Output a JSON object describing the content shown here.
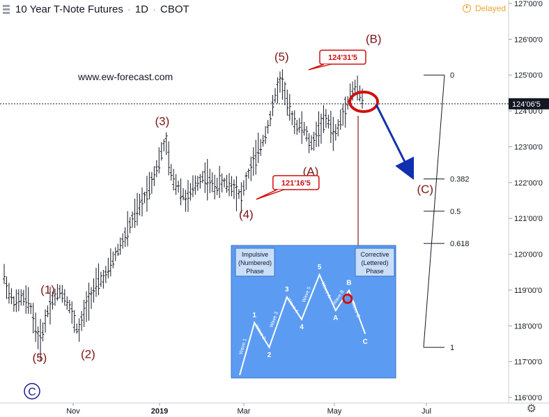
{
  "header": {
    "symbol": "10 Year T-Note Futures",
    "interval": "1D",
    "exchange": "CBOT",
    "status": "Delayed"
  },
  "watermark": "www.ew-forecast.com",
  "colors": {
    "wave_label": "#7b1414",
    "callout_border": "#d01010",
    "forecast_arrow": "#1030b0",
    "inset_bg": "#5b9cf2",
    "price_marker": "#131722"
  },
  "chart_data": {
    "type": "candlestick",
    "title": "",
    "xlabel": "",
    "ylabel": "",
    "x_tick_labels": [
      "Nov",
      "2019",
      "Mar",
      "May",
      "Jul"
    ],
    "y_ticks": [
      "116'00'0",
      "117'00'0",
      "118'00'0",
      "119'00'0",
      "120'00'0",
      "121'00'0",
      "122'00'0",
      "123'00'0",
      "124'00'0",
      "125'00'0",
      "126'00'0",
      "127'00'0"
    ],
    "ylim": [
      116,
      127
    ],
    "last_price": "124'06'5",
    "last_price_value": 124.2,
    "price_points": [
      {
        "t": 0,
        "v": 119.4
      },
      {
        "t": 3,
        "v": 118.9
      },
      {
        "t": 7,
        "v": 118.6
      },
      {
        "t": 11,
        "v": 118.8
      },
      {
        "t": 16,
        "v": 118.6
      },
      {
        "t": 22,
        "v": 117.5
      },
      {
        "t": 28,
        "v": 118.6
      },
      {
        "t": 35,
        "v": 119.0
      },
      {
        "t": 40,
        "v": 118.6
      },
      {
        "t": 46,
        "v": 117.8
      },
      {
        "t": 52,
        "v": 118.7
      },
      {
        "t": 58,
        "v": 119.2
      },
      {
        "t": 63,
        "v": 119.4
      },
      {
        "t": 68,
        "v": 119.9
      },
      {
        "t": 74,
        "v": 120.4
      },
      {
        "t": 80,
        "v": 121.0
      },
      {
        "t": 86,
        "v": 121.5
      },
      {
        "t": 92,
        "v": 122.1
      },
      {
        "t": 96,
        "v": 122.6
      },
      {
        "t": 100,
        "v": 123.2
      },
      {
        "t": 104,
        "v": 122.1
      },
      {
        "t": 108,
        "v": 121.9
      },
      {
        "t": 113,
        "v": 121.5
      },
      {
        "t": 118,
        "v": 121.9
      },
      {
        "t": 124,
        "v": 122.2
      },
      {
        "t": 130,
        "v": 121.9
      },
      {
        "t": 136,
        "v": 122.0
      },
      {
        "t": 142,
        "v": 121.9
      },
      {
        "t": 147,
        "v": 121.6
      },
      {
        "t": 151,
        "v": 122.2
      },
      {
        "t": 156,
        "v": 122.7
      },
      {
        "t": 160,
        "v": 123.1
      },
      {
        "t": 165,
        "v": 123.8
      },
      {
        "t": 169,
        "v": 124.6
      },
      {
        "t": 172,
        "v": 124.9
      },
      {
        "t": 176,
        "v": 124.1
      },
      {
        "t": 181,
        "v": 123.6
      },
      {
        "t": 186,
        "v": 123.5
      },
      {
        "t": 190,
        "v": 123.0
      },
      {
        "t": 195,
        "v": 123.5
      },
      {
        "t": 200,
        "v": 123.8
      },
      {
        "t": 205,
        "v": 123.3
      },
      {
        "t": 210,
        "v": 123.9
      },
      {
        "t": 214,
        "v": 124.4
      },
      {
        "t": 218,
        "v": 124.7
      },
      {
        "t": 222,
        "v": 124.3
      }
    ],
    "x_span": 222,
    "wave_labels": [
      {
        "label": "(5)",
        "t": 22,
        "v": 117.0
      },
      {
        "label": "(1)",
        "t": 27,
        "v": 118.9
      },
      {
        "label": "(2)",
        "t": 52,
        "v": 117.1
      },
      {
        "label": "(3)",
        "t": 98,
        "v": 123.6
      },
      {
        "label": "(4)",
        "t": 150,
        "v": 121.0
      },
      {
        "label": "(5)",
        "t": 172,
        "v": 125.4
      },
      {
        "label": "(A)",
        "t": 190,
        "v": 122.2
      },
      {
        "label": "(B)",
        "t": 229,
        "v": 125.9
      },
      {
        "label": "(C)",
        "t": 261,
        "v": 121.7
      }
    ],
    "degree_label": "C",
    "callouts": [
      {
        "label": "124'31'5",
        "t": 187,
        "v": 125.5
      },
      {
        "label": "121'16'5",
        "t": 158,
        "v": 122.0
      }
    ],
    "fib_levels": [
      {
        "ratio": "0",
        "v": 125.0
      },
      {
        "ratio": "0.382",
        "v": 122.1
      },
      {
        "ratio": "0.5",
        "v": 121.2
      },
      {
        "ratio": "0.618",
        "v": 120.3
      },
      {
        "ratio": "1",
        "v": 117.4
      }
    ],
    "inset": {
      "title_left": "Impulsive\n(Numbered)\nPhase",
      "title_right": "Corrective\n(Lettered)\nPhase",
      "points": [
        {
          "label": "",
          "x": 0.0,
          "y": 0.0
        },
        {
          "label": "1",
          "x": 0.1,
          "y": 0.47
        },
        {
          "label": "2",
          "x": 0.2,
          "y": 0.25
        },
        {
          "label": "3",
          "x": 0.32,
          "y": 0.7
        },
        {
          "label": "4",
          "x": 0.42,
          "y": 0.5
        },
        {
          "label": "5",
          "x": 0.54,
          "y": 0.9
        },
        {
          "label": "A",
          "x": 0.65,
          "y": 0.58
        },
        {
          "label": "B",
          "x": 0.74,
          "y": 0.76
        },
        {
          "label": "C",
          "x": 0.85,
          "y": 0.37
        }
      ],
      "wave_names": [
        "Wave 1",
        "Wave 2",
        "Wave 3",
        "Wave 4",
        "Wave 5",
        "Wave A",
        "Wave B",
        "Wave C"
      ]
    }
  }
}
